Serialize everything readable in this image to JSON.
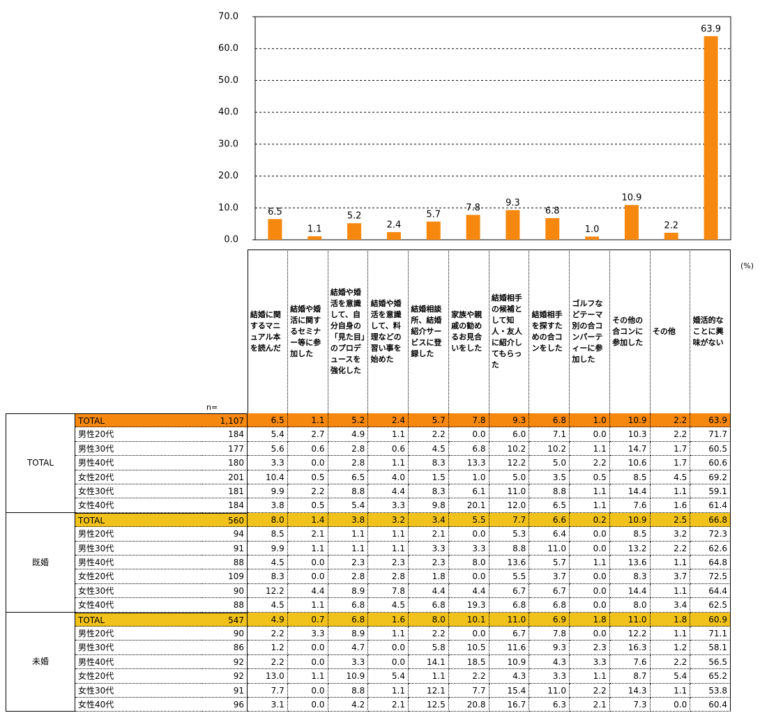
{
  "chart_data": {
    "type": "bar",
    "color": "#f7880f",
    "values": [
      6.5,
      1.1,
      5.2,
      2.4,
      5.7,
      7.8,
      9.3,
      6.8,
      1.0,
      10.9,
      2.2,
      63.9
    ],
    "value_labels": [
      "6.5",
      "1.1",
      "5.2",
      "2.4",
      "5.7",
      "7.8",
      "9.3",
      "6.8",
      "1.0",
      "10.9",
      "2.2",
      "63.9"
    ],
    "ylim": [
      0,
      70
    ],
    "yticks": [
      {
        "value": 0,
        "label": "0.0"
      },
      {
        "value": 10,
        "label": "10.0"
      },
      {
        "value": 20,
        "label": "20.0"
      },
      {
        "value": 30,
        "label": "30.0"
      },
      {
        "value": 40,
        "label": "40.0"
      },
      {
        "value": 50,
        "label": "50.0"
      },
      {
        "value": 60,
        "label": "60.0"
      },
      {
        "value": 70,
        "label": "70.0"
      }
    ],
    "grid": true
  },
  "table": {
    "unit": "(%)",
    "n_label": "n=",
    "columns": [
      "結婚に関するマニュアル本を読んだ",
      "結婚や婚活に関するセミナー等に参加した",
      "結婚や婚活を意識して、自分自身の「見た目」のプロデュースを強化した",
      "結婚や婚活を意識して、料理などの習い事を始めた",
      "結婚相談所、結婚紹介サービスに登録した",
      "家族や親戚の勧めるお見合いをした",
      "結婚相手の候補として知人・友人に紹介してもらった",
      "結婚相手を探すための合コンをした",
      "ゴルフなどテーマ別の合コンパーティーに参加した",
      "その他の合コンに参加した",
      "その他",
      "婚活的なことに興味がない"
    ],
    "groups": [
      {
        "label": "TOTAL",
        "rows": [
          [
            "TOTAL",
            "1,107",
            "6.5",
            "1.1",
            "5.2",
            "2.4",
            "5.7",
            "7.8",
            "9.3",
            "6.8",
            "1.0",
            "10.9",
            "2.2",
            "63.9"
          ],
          [
            "男性20代",
            "184",
            "5.4",
            "2.7",
            "4.9",
            "1.1",
            "2.2",
            "0.0",
            "6.0",
            "7.1",
            "0.0",
            "10.3",
            "2.2",
            "71.7"
          ],
          [
            "男性30代",
            "177",
            "5.6",
            "0.6",
            "2.8",
            "0.6",
            "4.5",
            "6.8",
            "10.2",
            "10.2",
            "1.1",
            "14.7",
            "1.7",
            "60.5"
          ],
          [
            "男性40代",
            "180",
            "3.3",
            "0.0",
            "2.8",
            "1.1",
            "8.3",
            "13.3",
            "12.2",
            "5.0",
            "2.2",
            "10.6",
            "1.7",
            "60.6"
          ],
          [
            "女性20代",
            "201",
            "10.4",
            "0.5",
            "6.5",
            "4.0",
            "1.5",
            "1.0",
            "5.0",
            "3.5",
            "0.5",
            "8.5",
            "4.5",
            "69.2"
          ],
          [
            "女性30代",
            "181",
            "9.9",
            "2.2",
            "8.8",
            "4.4",
            "8.3",
            "6.1",
            "11.0",
            "8.8",
            "1.1",
            "14.4",
            "1.1",
            "59.1"
          ],
          [
            "女性40代",
            "184",
            "3.8",
            "0.5",
            "5.4",
            "3.3",
            "9.8",
            "20.1",
            "12.0",
            "6.5",
            "1.1",
            "7.6",
            "1.6",
            "61.4"
          ]
        ]
      },
      {
        "label": "既婚",
        "rows": [
          [
            "TOTAL",
            "560",
            "8.0",
            "1.4",
            "3.8",
            "3.2",
            "3.4",
            "5.5",
            "7.7",
            "6.6",
            "0.2",
            "10.9",
            "2.5",
            "66.8"
          ],
          [
            "男性20代",
            "94",
            "8.5",
            "2.1",
            "1.1",
            "1.1",
            "2.1",
            "0.0",
            "5.3",
            "6.4",
            "0.0",
            "8.5",
            "3.2",
            "72.3"
          ],
          [
            "男性30代",
            "91",
            "9.9",
            "1.1",
            "1.1",
            "1.1",
            "3.3",
            "3.3",
            "8.8",
            "11.0",
            "0.0",
            "13.2",
            "2.2",
            "62.6"
          ],
          [
            "男性40代",
            "88",
            "4.5",
            "0.0",
            "2.3",
            "2.3",
            "2.3",
            "8.0",
            "13.6",
            "5.7",
            "1.1",
            "13.6",
            "1.1",
            "64.8"
          ],
          [
            "女性20代",
            "109",
            "8.3",
            "0.0",
            "2.8",
            "2.8",
            "1.8",
            "0.0",
            "5.5",
            "3.7",
            "0.0",
            "8.3",
            "3.7",
            "72.5"
          ],
          [
            "女性30代",
            "90",
            "12.2",
            "4.4",
            "8.9",
            "7.8",
            "4.4",
            "4.4",
            "6.7",
            "6.7",
            "0.0",
            "14.4",
            "1.1",
            "64.4"
          ],
          [
            "女性40代",
            "88",
            "4.5",
            "1.1",
            "6.8",
            "4.5",
            "6.8",
            "19.3",
            "6.8",
            "6.8",
            "0.0",
            "8.0",
            "3.4",
            "62.5"
          ]
        ]
      },
      {
        "label": "未婚",
        "rows": [
          [
            "TOTAL",
            "547",
            "4.9",
            "0.7",
            "6.8",
            "1.6",
            "8.0",
            "10.1",
            "11.0",
            "6.9",
            "1.8",
            "11.0",
            "1.8",
            "60.9"
          ],
          [
            "男性20代",
            "90",
            "2.2",
            "3.3",
            "8.9",
            "1.1",
            "2.2",
            "0.0",
            "6.7",
            "7.8",
            "0.0",
            "12.2",
            "1.1",
            "71.1"
          ],
          [
            "男性30代",
            "86",
            "1.2",
            "0.0",
            "4.7",
            "0.0",
            "5.8",
            "10.5",
            "11.6",
            "9.3",
            "2.3",
            "16.3",
            "1.2",
            "58.1"
          ],
          [
            "男性40代",
            "92",
            "2.2",
            "0.0",
            "3.3",
            "0.0",
            "14.1",
            "18.5",
            "10.9",
            "4.3",
            "3.3",
            "7.6",
            "2.2",
            "56.5"
          ],
          [
            "女性20代",
            "92",
            "13.0",
            "1.1",
            "10.9",
            "5.4",
            "1.1",
            "2.2",
            "4.3",
            "3.3",
            "1.1",
            "8.7",
            "5.4",
            "65.2"
          ],
          [
            "女性30代",
            "91",
            "7.7",
            "0.0",
            "8.8",
            "1.1",
            "12.1",
            "7.7",
            "15.4",
            "11.0",
            "2.2",
            "14.3",
            "1.1",
            "53.8"
          ],
          [
            "女性40代",
            "96",
            "3.1",
            "0.0",
            "4.2",
            "2.1",
            "12.5",
            "20.8",
            "16.7",
            "6.3",
            "2.1",
            "7.3",
            "0.0",
            "60.4"
          ]
        ]
      }
    ]
  }
}
